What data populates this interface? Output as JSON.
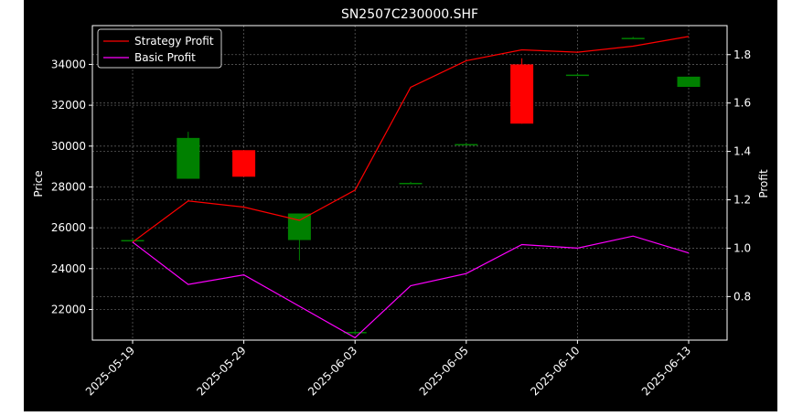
{
  "chart_data": {
    "type": "candlestick+line",
    "title": "SN2507C230000.SHF",
    "ylabel_left": "Price",
    "ylabel_right": "Profit",
    "xlabel": "",
    "ylim_left": [
      20500,
      35900
    ],
    "ylim_right": [
      0.62,
      1.92
    ],
    "yticks_left": [
      22000,
      24000,
      26000,
      28000,
      30000,
      32000,
      34000
    ],
    "yticks_right": [
      0.8,
      1.0,
      1.2,
      1.4,
      1.6,
      1.8
    ],
    "xtick_labels": [
      "2025-05-19",
      "2025-05-29",
      "2025-06-03",
      "2025-06-05",
      "2025-06-10",
      "2025-06-13"
    ],
    "xtick_positions": [
      0,
      2,
      4,
      6,
      8,
      10
    ],
    "grid": true,
    "legend_position": "top-left",
    "colors": {
      "background": "#000000",
      "foreground": "#ffffff",
      "grid": "#808080",
      "up": "#008000",
      "down": "#ff0000",
      "strategy": "#ff0000",
      "basic": "#ff00ff"
    },
    "candles": [
      {
        "i": 0,
        "open": 25400,
        "close": 25400,
        "high": 25450,
        "low": 25350
      },
      {
        "i": 1,
        "open": 28400,
        "close": 30400,
        "high": 30700,
        "low": 28400
      },
      {
        "i": 2,
        "open": 29800,
        "close": 28500,
        "high": 29800,
        "low": 28500
      },
      {
        "i": 3,
        "open": 25400,
        "close": 26700,
        "high": 26700,
        "low": 24400
      },
      {
        "i": 4,
        "open": 20900,
        "close": 20900,
        "high": 20950,
        "low": 20850
      },
      {
        "i": 5,
        "open": 28200,
        "close": 28200,
        "high": 28250,
        "low": 28150
      },
      {
        "i": 6,
        "open": 30100,
        "close": 30100,
        "high": 30150,
        "low": 30050
      },
      {
        "i": 7,
        "open": 34000,
        "close": 31100,
        "high": 34300,
        "low": 31100
      },
      {
        "i": 8,
        "open": 33500,
        "close": 33500,
        "high": 33550,
        "low": 33450
      },
      {
        "i": 9,
        "open": 35300,
        "close": 35300,
        "high": 35350,
        "low": 35250
      },
      {
        "i": 10,
        "open": 32900,
        "close": 33400,
        "high": 33400,
        "low": 32900
      }
    ],
    "series": [
      {
        "name": "Strategy Profit",
        "color": "#ff0000",
        "values": [
          1.025,
          1.195,
          1.17,
          1.115,
          1.24,
          1.665,
          1.775,
          1.82,
          1.81,
          1.835,
          1.875
        ]
      },
      {
        "name": "Basic Profit",
        "color": "#ff00ff",
        "values": [
          1.025,
          0.85,
          0.89,
          0.76,
          0.63,
          0.845,
          0.895,
          1.015,
          1.0,
          1.05,
          0.98
        ]
      }
    ]
  }
}
